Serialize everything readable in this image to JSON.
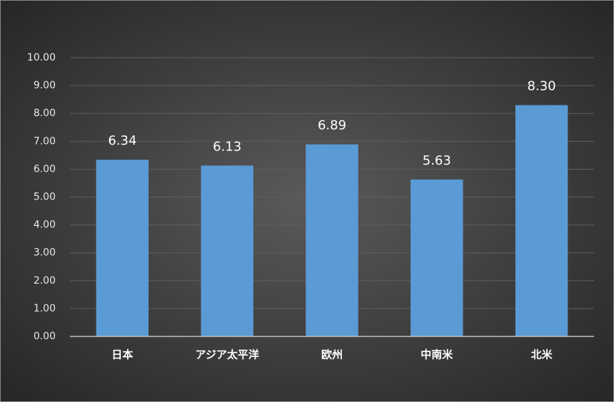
{
  "chart_data": {
    "type": "bar",
    "categories": [
      "日本",
      "アジア太平洋",
      "欧州",
      "中南米",
      "北米"
    ],
    "values": [
      6.34,
      6.13,
      6.89,
      5.63,
      8.3
    ],
    "value_labels": [
      "6.34",
      "6.13",
      "6.89",
      "5.63",
      "8.30"
    ],
    "color": "#5b9bd5",
    "ylim": [
      0,
      10
    ],
    "yticks": [
      {
        "value": 0,
        "label": "0.00"
      },
      {
        "value": 1,
        "label": "1.00"
      },
      {
        "value": 2,
        "label": "2.00"
      },
      {
        "value": 3,
        "label": "3.00"
      },
      {
        "value": 4,
        "label": "4.00"
      },
      {
        "value": 5,
        "label": "5.00"
      },
      {
        "value": 6,
        "label": "6.00"
      },
      {
        "value": 7,
        "label": "7.00"
      },
      {
        "value": 8,
        "label": "8.00"
      },
      {
        "value": 9,
        "label": "9.00"
      },
      {
        "value": 10,
        "label": "10.00"
      }
    ],
    "grid": true
  }
}
